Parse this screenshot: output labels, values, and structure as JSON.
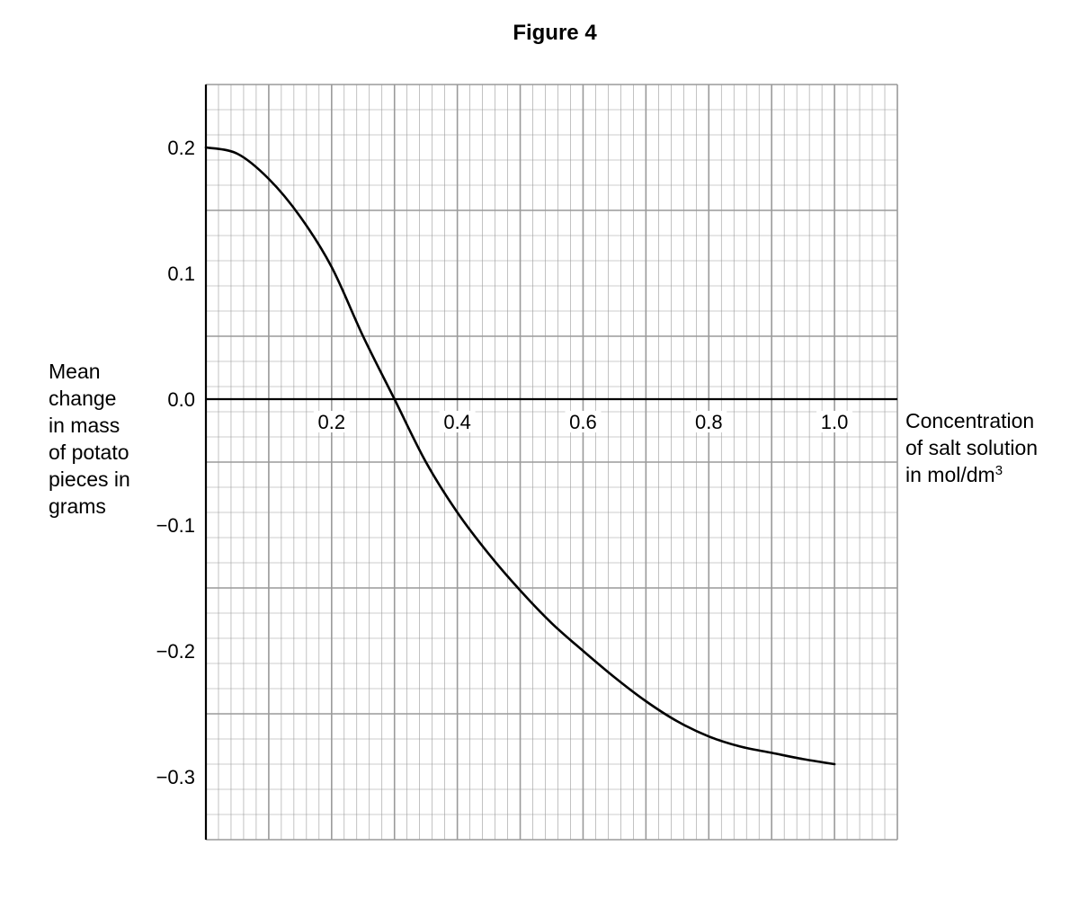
{
  "chart_data": {
    "type": "line",
    "title": "Figure 4",
    "xlabel_lines": [
      "Concentration",
      "of salt solution",
      "in mol/dm"
    ],
    "xlabel_superscript": "3",
    "ylabel_lines": [
      "Mean",
      "change",
      "in mass",
      "of potato",
      "pieces in",
      "grams"
    ],
    "xlim": [
      0,
      1.1
    ],
    "ylim": [
      -0.35,
      0.25
    ],
    "x_ticks": [
      {
        "value": 0.2,
        "label": "0.2"
      },
      {
        "value": 0.4,
        "label": "0.4"
      },
      {
        "value": 0.6,
        "label": "0.6"
      },
      {
        "value": 0.8,
        "label": "0.8"
      },
      {
        "value": 1.0,
        "label": "1.0"
      }
    ],
    "y_ticks": [
      {
        "value": 0.2,
        "label": "0.2"
      },
      {
        "value": 0.1,
        "label": "0.1"
      },
      {
        "value": 0.0,
        "label": "0.0"
      },
      {
        "value": -0.1,
        "label": "−0.1"
      },
      {
        "value": -0.2,
        "label": "−0.2"
      },
      {
        "value": -0.3,
        "label": "−0.3"
      }
    ],
    "grid": true,
    "series": [
      {
        "x": [
          0.0,
          0.05,
          0.1,
          0.15,
          0.2,
          0.25,
          0.3,
          0.35,
          0.4,
          0.45,
          0.5,
          0.55,
          0.6,
          0.65,
          0.7,
          0.75,
          0.8,
          0.85,
          0.9,
          0.95,
          1.0
        ],
        "values": [
          0.2,
          0.195,
          0.175,
          0.145,
          0.105,
          0.05,
          0.0,
          -0.05,
          -0.09,
          -0.123,
          -0.152,
          -0.178,
          -0.2,
          -0.221,
          -0.24,
          -0.256,
          -0.268,
          -0.276,
          -0.281,
          -0.286,
          -0.29
        ]
      }
    ],
    "line_color": "#000000",
    "grid_color": "#9a9a9a",
    "axis_color": "#000000"
  }
}
